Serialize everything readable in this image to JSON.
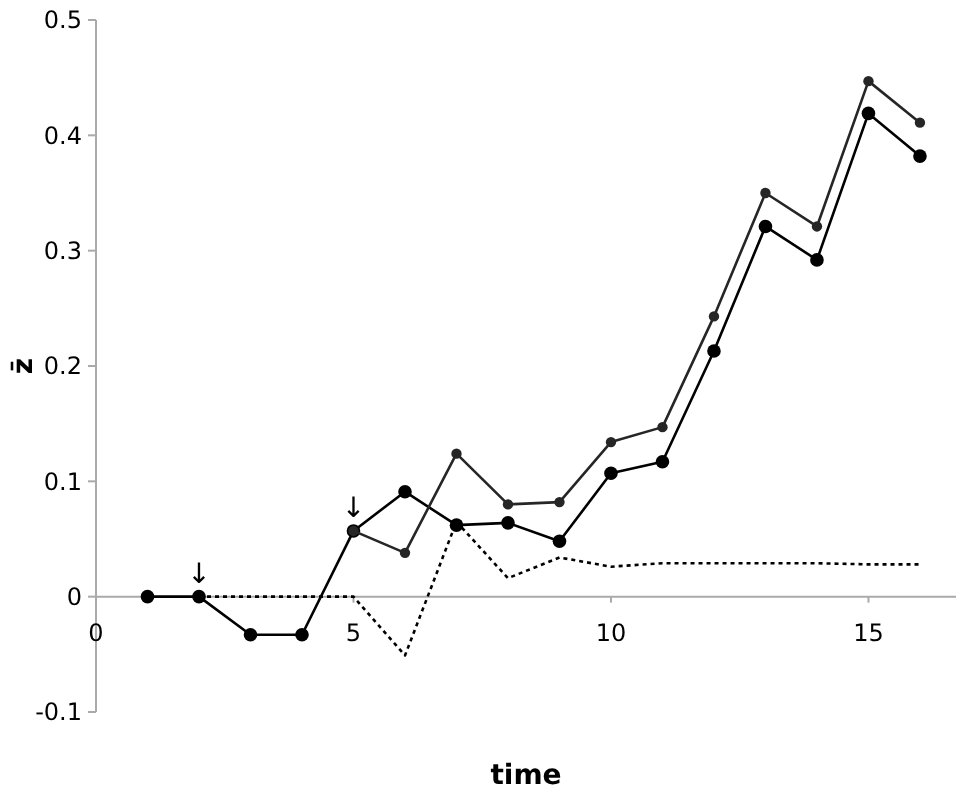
{
  "chart_data": {
    "type": "line",
    "xlabel": "time",
    "ylabel": "z̄",
    "xlim": [
      0,
      16.7
    ],
    "xticks": [
      0,
      5,
      10,
      15
    ],
    "ylim": [
      -0.1,
      0.5
    ],
    "yticks": [
      -0.1,
      0,
      0.1,
      0.2,
      0.3,
      0.4,
      0.5
    ],
    "grid": false,
    "series": [
      {
        "color": "#000000",
        "marker": "circle",
        "line_style": "solid",
        "x": [
          1,
          2,
          3,
          4,
          5,
          6,
          7,
          8,
          9,
          10,
          11,
          12,
          13,
          14,
          15,
          16
        ],
        "values": [
          0,
          0,
          -0.033,
          -0.033,
          0.057,
          0.091,
          0.062,
          0.064,
          0.048,
          0.107,
          0.117,
          0.213,
          0.321,
          0.292,
          0.419,
          0.382
        ]
      },
      {
        "color": "#262626",
        "marker": "circle",
        "line_style": "solid",
        "x": [
          5,
          6,
          7,
          8,
          9,
          10,
          11,
          12,
          13,
          14,
          15,
          16
        ],
        "values": [
          0.057,
          0.038,
          0.124,
          0.08,
          0.082,
          0.134,
          0.147,
          0.243,
          0.35,
          0.321,
          0.447,
          0.411
        ]
      },
      {
        "color": "#000000",
        "marker": "none",
        "line_style": "dotted",
        "x": [
          2,
          3,
          4,
          5,
          6,
          7,
          8,
          9,
          10,
          11,
          12,
          13,
          14,
          15,
          16
        ],
        "values": [
          0,
          0,
          0,
          0,
          -0.051,
          0.065,
          0.016,
          0.034,
          0.026,
          0.029,
          0.029,
          0.029,
          0.029,
          0.028,
          0.028
        ]
      }
    ],
    "annotations": [
      {
        "text": "↓",
        "x": 2,
        "y": 0
      },
      {
        "text": "↓",
        "x": 5,
        "y": 0.057
      }
    ]
  }
}
